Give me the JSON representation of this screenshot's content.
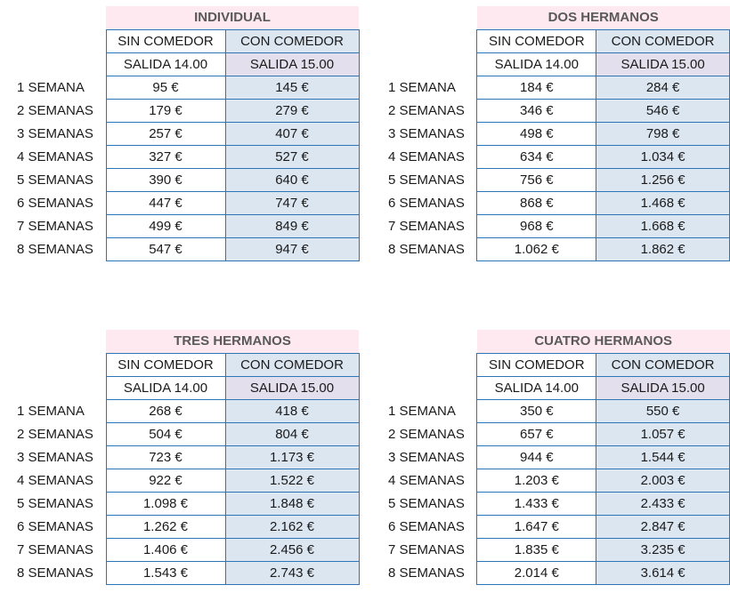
{
  "tables": [
    {
      "title": "INDIVIDUAL",
      "col_sin": "SIN COMEDOR",
      "col_con": "CON COMEDOR",
      "salida_sin": "SALIDA 14.00",
      "salida_con": "SALIDA 15.00",
      "rows": [
        {
          "label": "1 SEMANA",
          "sin": "95 €",
          "con": "145 €"
        },
        {
          "label": "2 SEMANAS",
          "sin": "179 €",
          "con": "279 €"
        },
        {
          "label": "3 SEMANAS",
          "sin": "257 €",
          "con": "407 €"
        },
        {
          "label": "4 SEMANAS",
          "sin": "327 €",
          "con": "527 €"
        },
        {
          "label": "5 SEMANAS",
          "sin": "390 €",
          "con": "640 €"
        },
        {
          "label": "6 SEMANAS",
          "sin": "447 €",
          "con": "747 €"
        },
        {
          "label": "7 SEMANAS",
          "sin": "499 €",
          "con": "849 €"
        },
        {
          "label": "8 SEMANAS",
          "sin": "547 €",
          "con": "947 €"
        }
      ]
    },
    {
      "title": "DOS HERMANOS",
      "col_sin": "SIN COMEDOR",
      "col_con": "CON COMEDOR",
      "salida_sin": "SALIDA 14.00",
      "salida_con": "SALIDA 15.00",
      "rows": [
        {
          "label": "1 SEMANA",
          "sin": "184 €",
          "con": "284 €"
        },
        {
          "label": "2 SEMANAS",
          "sin": "346 €",
          "con": "546 €"
        },
        {
          "label": "3 SEMANAS",
          "sin": "498 €",
          "con": "798 €"
        },
        {
          "label": "4 SEMANAS",
          "sin": "634 €",
          "con": "1.034 €"
        },
        {
          "label": "5 SEMANAS",
          "sin": "756 €",
          "con": "1.256 €"
        },
        {
          "label": "6 SEMANAS",
          "sin": "868 €",
          "con": "1.468 €"
        },
        {
          "label": "7 SEMANAS",
          "sin": "968 €",
          "con": "1.668 €"
        },
        {
          "label": "8 SEMANAS",
          "sin": "1.062 €",
          "con": "1.862 €"
        }
      ]
    },
    {
      "title": "TRES HERMANOS",
      "col_sin": "SIN COMEDOR",
      "col_con": "CON COMEDOR",
      "salida_sin": "SALIDA 14.00",
      "salida_con": "SALIDA 15.00",
      "rows": [
        {
          "label": "1 SEMANA",
          "sin": "268 €",
          "con": "418 €"
        },
        {
          "label": "2 SEMANAS",
          "sin": "504 €",
          "con": "804 €"
        },
        {
          "label": "3 SEMANAS",
          "sin": "723 €",
          "con": "1.173 €"
        },
        {
          "label": "4 SEMANAS",
          "sin": "922 €",
          "con": "1.522 €"
        },
        {
          "label": "5 SEMANAS",
          "sin": "1.098 €",
          "con": "1.848 €"
        },
        {
          "label": "6 SEMANAS",
          "sin": "1.262 €",
          "con": "2.162 €"
        },
        {
          "label": "7 SEMANAS",
          "sin": "1.406 €",
          "con": "2.456 €"
        },
        {
          "label": "8 SEMANAS",
          "sin": "1.543 €",
          "con": "2.743 €"
        }
      ]
    },
    {
      "title": "CUATRO HERMANOS",
      "col_sin": "SIN COMEDOR",
      "col_con": "CON COMEDOR",
      "salida_sin": "SALIDA 14.00",
      "salida_con": "SALIDA 15.00",
      "rows": [
        {
          "label": "1 SEMANA",
          "sin": "350 €",
          "con": "550 €"
        },
        {
          "label": "2 SEMANAS",
          "sin": "657 €",
          "con": "1.057 €"
        },
        {
          "label": "3 SEMANAS",
          "sin": "944 €",
          "con": "1.544 €"
        },
        {
          "label": "4 SEMANAS",
          "sin": "1.203 €",
          "con": "2.003 €"
        },
        {
          "label": "5 SEMANAS",
          "sin": "1.433 €",
          "con": "2.433 €"
        },
        {
          "label": "6 SEMANAS",
          "sin": "1.647 €",
          "con": "2.847 €"
        },
        {
          "label": "7 SEMANAS",
          "sin": "1.835 €",
          "con": "3.235 €"
        },
        {
          "label": "8 SEMANAS",
          "sin": "2.014 €",
          "con": "3.614 €"
        }
      ]
    }
  ]
}
